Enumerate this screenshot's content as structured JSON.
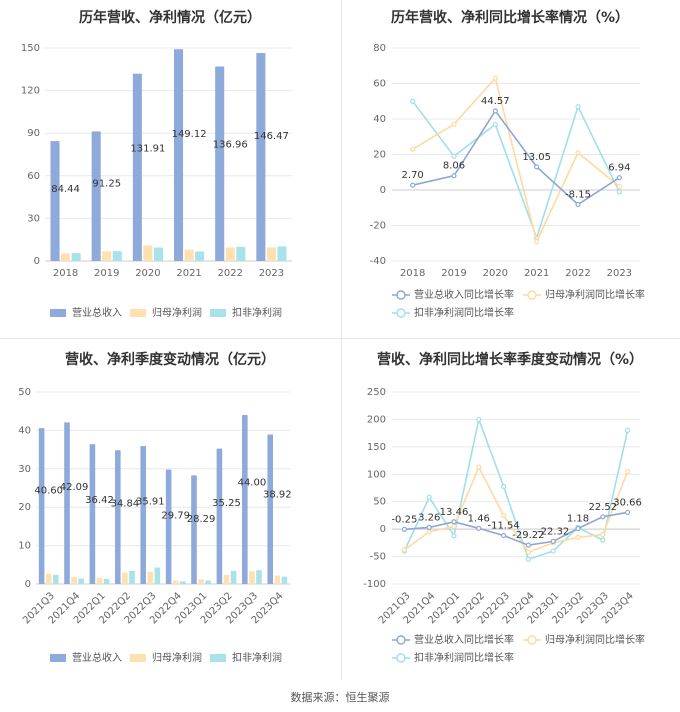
{
  "footer": {
    "label": "数据来源：",
    "source": "恒生聚源"
  },
  "colors": {
    "revenue": "#8eaadb",
    "net_profit": "#ffe0b0",
    "deducted_profit": "#a8e3ea",
    "revenue_line": "#8ea6d6",
    "net_profit_line": "#ffd9a0",
    "deducted_profit_line": "#9fe0e8"
  },
  "chart_data": [
    {
      "id": "annual-amount",
      "type": "bar",
      "title": "历年营收、净利情况（亿元）",
      "categories": [
        "2018",
        "2019",
        "2020",
        "2021",
        "2022",
        "2023"
      ],
      "series": [
        {
          "name": "营业总收入",
          "values": [
            84.44,
            91.25,
            131.91,
            149.12,
            136.96,
            146.47
          ]
        },
        {
          "name": "归母净利润",
          "values": [
            5.2,
            6.8,
            11.0,
            8.0,
            9.5,
            9.6
          ]
        },
        {
          "name": "扣非净利润",
          "values": [
            5.6,
            6.9,
            9.5,
            6.7,
            10.0,
            10.3
          ]
        }
      ],
      "data_labels": [
        "84.44",
        "91.25",
        "131.91",
        "149.12",
        "136.96",
        "146.47"
      ],
      "ylim": [
        0,
        150
      ],
      "yticks": [
        "0",
        "30",
        "60",
        "90",
        "120",
        "150"
      ],
      "legend": [
        "营业总收入",
        "归母净利润",
        "扣非净利润"
      ]
    },
    {
      "id": "annual-growth",
      "type": "line",
      "title": "历年营收、净利同比增长率情况（%）",
      "categories": [
        "2018",
        "2019",
        "2020",
        "2021",
        "2022",
        "2023"
      ],
      "series": [
        {
          "name": "营业总收入同比增长率",
          "values": [
            2.7,
            8.06,
            44.57,
            13.05,
            -8.15,
            6.94
          ]
        },
        {
          "name": "归母净利润同比增长率",
          "values": [
            23,
            37,
            63,
            -29,
            21,
            2
          ]
        },
        {
          "name": "扣非净利润同比增长率",
          "values": [
            50,
            19,
            37,
            -27,
            47,
            -1
          ]
        }
      ],
      "data_labels": [
        "2.70",
        "8.06",
        "44.57",
        "13.05",
        "-8.15",
        "6.94"
      ],
      "ylim": [
        -40,
        80
      ],
      "yticks": [
        "-40",
        "-20",
        "0",
        "20",
        "40",
        "60",
        "80"
      ],
      "legend": [
        "营业总收入同比增长率",
        "归母净利润同比增长率",
        "扣非净利润同比增长率"
      ]
    },
    {
      "id": "quarterly-amount",
      "type": "bar",
      "title": "营收、净利季度变动情况（亿元）",
      "categories": [
        "2021Q3",
        "2021Q4",
        "2022Q1",
        "2022Q2",
        "2022Q3",
        "2022Q4",
        "2023Q1",
        "2023Q2",
        "2023Q3",
        "2023Q4"
      ],
      "series": [
        {
          "name": "营业总收入",
          "values": [
            40.6,
            42.09,
            36.42,
            34.84,
            35.91,
            29.79,
            28.29,
            35.25,
            44.0,
            38.92
          ]
        },
        {
          "name": "归母净利润",
          "values": [
            2.7,
            1.8,
            1.6,
            3.0,
            3.2,
            0.9,
            1.2,
            2.4,
            3.3,
            2.2
          ]
        },
        {
          "name": "扣非净利润",
          "values": [
            2.4,
            1.4,
            1.3,
            3.4,
            4.3,
            0.7,
            0.9,
            3.4,
            3.6,
            1.9
          ]
        }
      ],
      "data_labels": [
        "40.60",
        "42.09",
        "36.42",
        "34.84",
        "35.91",
        "29.79",
        "28.29",
        "35.25",
        "44.00",
        "38.92"
      ],
      "ylim": [
        0,
        50
      ],
      "yticks": [
        "0",
        "10",
        "20",
        "30",
        "40",
        "50"
      ],
      "legend": [
        "营业总收入",
        "归母净利润",
        "扣非净利润"
      ]
    },
    {
      "id": "quarterly-growth",
      "type": "line",
      "title": "营收、净利同比增长率季度变动情况（%）",
      "categories": [
        "2021Q3",
        "2021Q4",
        "2022Q1",
        "2022Q2",
        "2022Q3",
        "2022Q4",
        "2023Q1",
        "2023Q2",
        "2023Q3",
        "2023Q4"
      ],
      "series": [
        {
          "name": "营业总收入同比增长率",
          "values": [
            -0.25,
            3.26,
            13.46,
            1.46,
            -11.54,
            -29.22,
            -22.32,
            1.18,
            22.52,
            30.66
          ]
        },
        {
          "name": "归母净利润同比增长率",
          "values": [
            -38,
            -5,
            5,
            113,
            25,
            -42,
            -25,
            -15,
            -10,
            105
          ]
        },
        {
          "name": "扣非净利润同比增长率",
          "values": [
            -40,
            58,
            -12,
            200,
            78,
            -55,
            -40,
            3,
            -20,
            180
          ]
        }
      ],
      "data_labels": [
        "-0.25",
        "3.26",
        "13.46",
        "1.46",
        "-11.54",
        "-29.22",
        "-22.32",
        "1.18",
        "22.52",
        "30.66"
      ],
      "ylim": [
        -100,
        250
      ],
      "yticks": [
        "-100",
        "-50",
        "0",
        "50",
        "100",
        "150",
        "200",
        "250"
      ],
      "legend": [
        "营业总收入同比增长率",
        "归母净利润同比增长率",
        "扣非净利润同比增长率"
      ]
    }
  ]
}
